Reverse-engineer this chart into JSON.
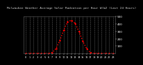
{
  "hours": [
    0,
    1,
    2,
    3,
    4,
    5,
    6,
    7,
    8,
    9,
    10,
    11,
    12,
    13,
    14,
    15,
    16,
    17,
    18,
    19,
    20,
    21,
    22,
    23
  ],
  "values": [
    0,
    0,
    0,
    0,
    0,
    0,
    0,
    15,
    70,
    180,
    320,
    430,
    450,
    410,
    300,
    170,
    70,
    15,
    2,
    0,
    0,
    0,
    0,
    0
  ],
  "title": "Milwaukee Weather Average Solar Radiation per Hour W/m2 (Last 24 Hours)",
  "title_fontsize": 3.2,
  "line_color": "#ff0000",
  "line_style": "dotted",
  "line_width": 1.0,
  "marker": ".",
  "marker_size": 1.5,
  "bg_color": "#000000",
  "plot_bg_color": "#000000",
  "grid_color": "#888888",
  "grid_style": "--",
  "ylim": [
    0,
    500
  ],
  "yticks": [
    100,
    200,
    300,
    400,
    500
  ],
  "ytick_labels": [
    "100",
    "200",
    "300",
    "400",
    "500"
  ],
  "ytick_fontsize": 3.0,
  "xtick_fontsize": 2.5,
  "title_color": "#cccccc"
}
